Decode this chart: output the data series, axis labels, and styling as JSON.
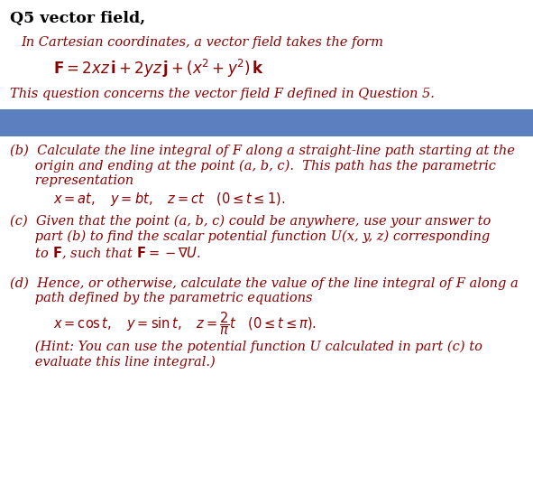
{
  "bg_color": "#ffffff",
  "blue_bar_color": "#5B7FBF",
  "text_color": "#8B0000",
  "title_color": "#000000",
  "font_family": "DejaVu Serif",
  "title": "Q5 vector field,",
  "intro_line": "In Cartesian coordinates, a vector field takes the form",
  "question_line": "This question concerns the vector field F defined in Question 5.",
  "b_line1": "(b)  Calculate the line integral of F along a straight-line path starting at the",
  "b_line2": "      origin and ending at the point (a, b, c).  This path has the parametric",
  "b_line3": "      representation",
  "c_line1": "(c)  Given that the point (a, b, c) could be anywhere, use your answer to",
  "c_line2": "      part (b) to find the scalar potential function U(x, y, z) corresponding",
  "c_line3": "      to F, such that F = −∇U.",
  "d_line1": "(d)  Hence, or otherwise, calculate the value of the line integral of F along a",
  "d_line2": "      path defined by the parametric equations",
  "hint1": "      (Hint: You can use the potential function U calculated in part (c) to",
  "hint2": "      evaluate this line integral.)"
}
